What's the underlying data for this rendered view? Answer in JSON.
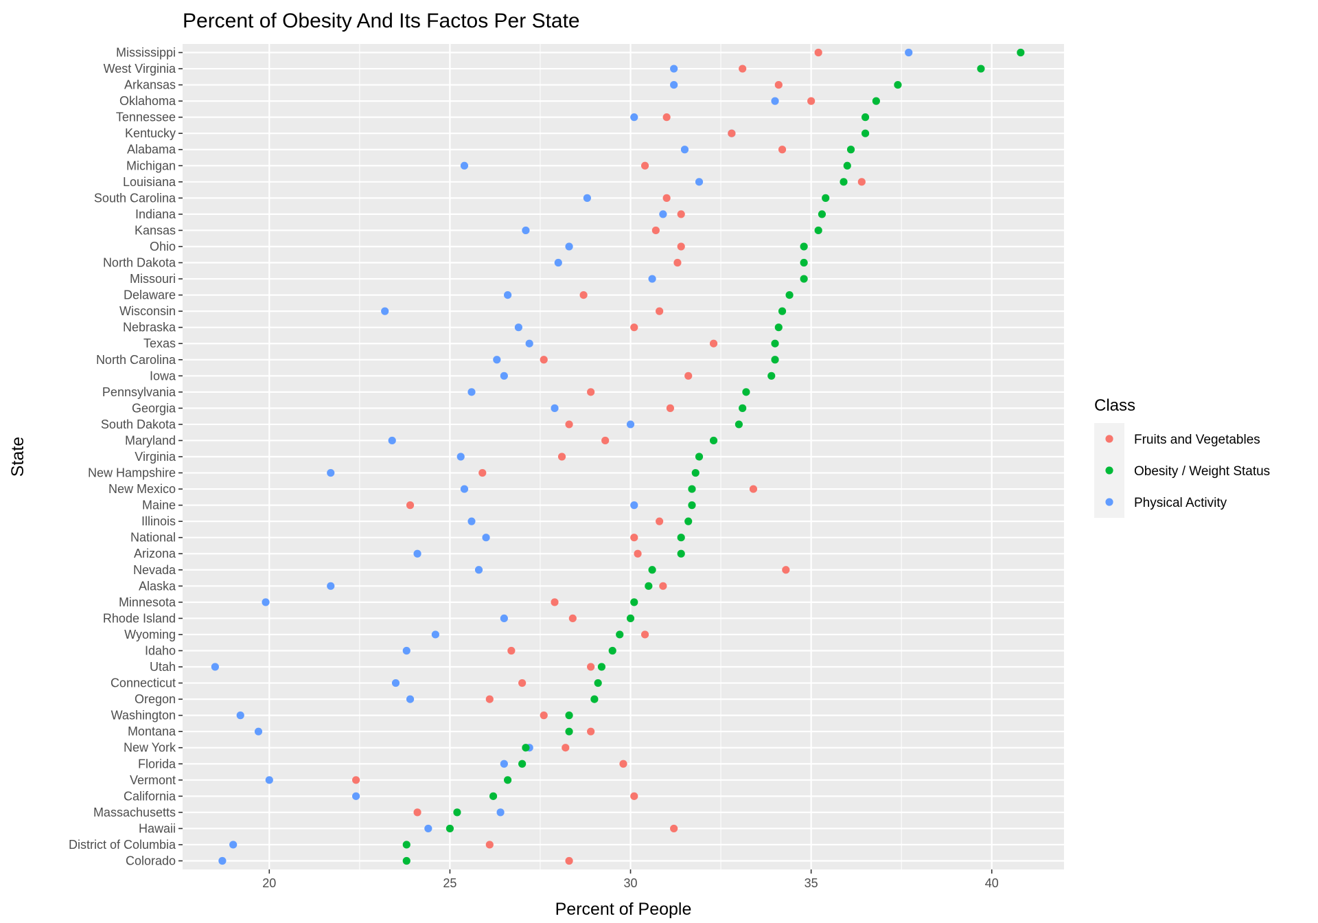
{
  "chart_data": {
    "type": "scatter",
    "title": "Percent of Obesity And Its Factos Per State",
    "xlabel": "Percent of People",
    "ylabel": "State",
    "xlim": [
      17.6,
      42.0
    ],
    "xticks": [
      20,
      25,
      30,
      35,
      40
    ],
    "grid": true,
    "legend": {
      "title": "Class",
      "position": "right",
      "entries": [
        "Fruits and Vegetables",
        "Obesity / Weight Status",
        "Physical Activity"
      ]
    },
    "colors": {
      "Fruits and Vegetables": "#F8766D",
      "Obesity / Weight Status": "#00BA38",
      "Physical Activity": "#619CFF"
    },
    "categories": [
      "Mississippi",
      "West Virginia",
      "Arkansas",
      "Oklahoma",
      "Tennessee",
      "Kentucky",
      "Alabama",
      "Michigan",
      "Louisiana",
      "South Carolina",
      "Indiana",
      "Kansas",
      "Ohio",
      "North Dakota",
      "Missouri",
      "Delaware",
      "Wisconsin",
      "Nebraska",
      "Texas",
      "North Carolina",
      "Iowa",
      "Pennsylvania",
      "Georgia",
      "South Dakota",
      "Maryland",
      "Virginia",
      "New Hampshire",
      "New Mexico",
      "Maine",
      "Illinois",
      "National",
      "Arizona",
      "Nevada",
      "Alaska",
      "Minnesota",
      "Rhode Island",
      "Wyoming",
      "Idaho",
      "Utah",
      "Connecticut",
      "Oregon",
      "Washington",
      "Montana",
      "New York",
      "Florida",
      "Vermont",
      "California",
      "Massachusetts",
      "Hawaii",
      "District of Columbia",
      "Colorado"
    ],
    "series": [
      {
        "name": "Fruits and Vegetables",
        "values": [
          35.2,
          33.1,
          34.1,
          35.0,
          31.0,
          32.8,
          34.2,
          30.4,
          36.4,
          31.0,
          31.4,
          30.7,
          31.4,
          31.3,
          null,
          28.7,
          30.8,
          30.1,
          32.3,
          27.6,
          31.6,
          28.9,
          31.1,
          28.3,
          29.3,
          28.1,
          25.9,
          33.4,
          23.9,
          30.8,
          30.1,
          30.2,
          34.3,
          30.9,
          27.9,
          28.4,
          30.4,
          26.7,
          28.9,
          27.0,
          26.1,
          27.6,
          28.9,
          28.2,
          29.8,
          22.4,
          30.1,
          24.1,
          31.2,
          26.1,
          28.3
        ]
      },
      {
        "name": "Obesity / Weight Status",
        "values": [
          40.8,
          39.7,
          37.4,
          36.8,
          36.5,
          36.5,
          36.1,
          36.0,
          35.9,
          35.4,
          35.3,
          35.2,
          34.8,
          34.8,
          34.8,
          34.4,
          34.2,
          34.1,
          34.0,
          34.0,
          33.9,
          33.2,
          33.1,
          33.0,
          32.3,
          31.9,
          31.8,
          31.7,
          31.7,
          31.6,
          31.4,
          31.4,
          30.6,
          30.5,
          30.1,
          30.0,
          29.7,
          29.5,
          29.2,
          29.1,
          29.0,
          28.3,
          28.3,
          27.1,
          27.0,
          26.6,
          26.2,
          25.2,
          25.0,
          23.8,
          23.8
        ]
      },
      {
        "name": "Physical Activity",
        "values": [
          37.7,
          31.2,
          31.2,
          34.0,
          30.1,
          32.8,
          31.5,
          25.4,
          31.9,
          28.8,
          30.9,
          27.1,
          28.3,
          28.0,
          30.6,
          26.6,
          23.2,
          26.9,
          27.2,
          26.3,
          26.5,
          25.6,
          27.9,
          30.0,
          23.4,
          25.3,
          21.7,
          25.4,
          30.1,
          25.6,
          26.0,
          24.1,
          25.8,
          21.7,
          19.9,
          26.5,
          24.6,
          23.8,
          18.5,
          23.5,
          23.9,
          19.2,
          19.7,
          27.2,
          26.5,
          20.0,
          22.4,
          26.4,
          24.4,
          19.0,
          18.7
        ]
      }
    ]
  }
}
